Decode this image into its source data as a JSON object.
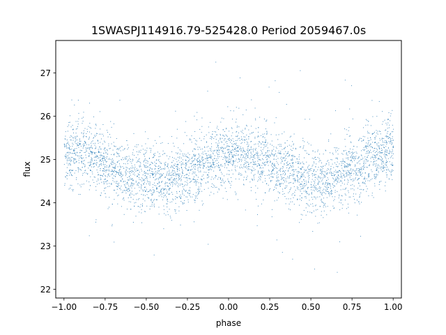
{
  "chart_data": {
    "type": "scatter",
    "title": "1SWASPJ114916.79-525428.0 Period 2059467.0s",
    "xlabel": "phase",
    "ylabel": "flux",
    "xlim": [
      -1.05,
      1.05
    ],
    "ylim": [
      21.8,
      27.75
    ],
    "x_ticks": [
      -1.0,
      -0.75,
      -0.5,
      -0.25,
      0.0,
      0.25,
      0.5,
      0.75,
      1.0
    ],
    "x_tick_labels": [
      "−1.00",
      "−0.75",
      "−0.50",
      "−0.25",
      "0.00",
      "0.25",
      "0.50",
      "0.75",
      "1.00"
    ],
    "y_ticks": [
      22,
      23,
      24,
      25,
      26,
      27
    ],
    "y_tick_labels": [
      "22",
      "23",
      "24",
      "25",
      "26",
      "27"
    ],
    "grid": false,
    "marker_color": "#1f77b4",
    "series": [
      {
        "phase_range": [
          -1.0,
          1.0
        ],
        "profile_x": [
          -1.0,
          -0.9,
          -0.8,
          -0.7,
          -0.6,
          -0.5,
          -0.4,
          -0.3,
          -0.2,
          -0.1,
          0.0,
          0.1,
          0.2,
          0.3,
          0.4,
          0.5,
          0.6,
          0.7,
          0.8,
          0.9,
          1.0
        ],
        "profile_median_flux": [
          25.1,
          25.2,
          25.0,
          24.8,
          24.65,
          24.6,
          24.5,
          24.6,
          24.8,
          24.95,
          25.2,
          25.1,
          25.0,
          24.85,
          24.65,
          24.55,
          24.5,
          24.7,
          24.9,
          25.05,
          25.25
        ],
        "typical_scatter": 0.35,
        "flux_extent": [
          22.1,
          27.4
        ]
      }
    ]
  }
}
